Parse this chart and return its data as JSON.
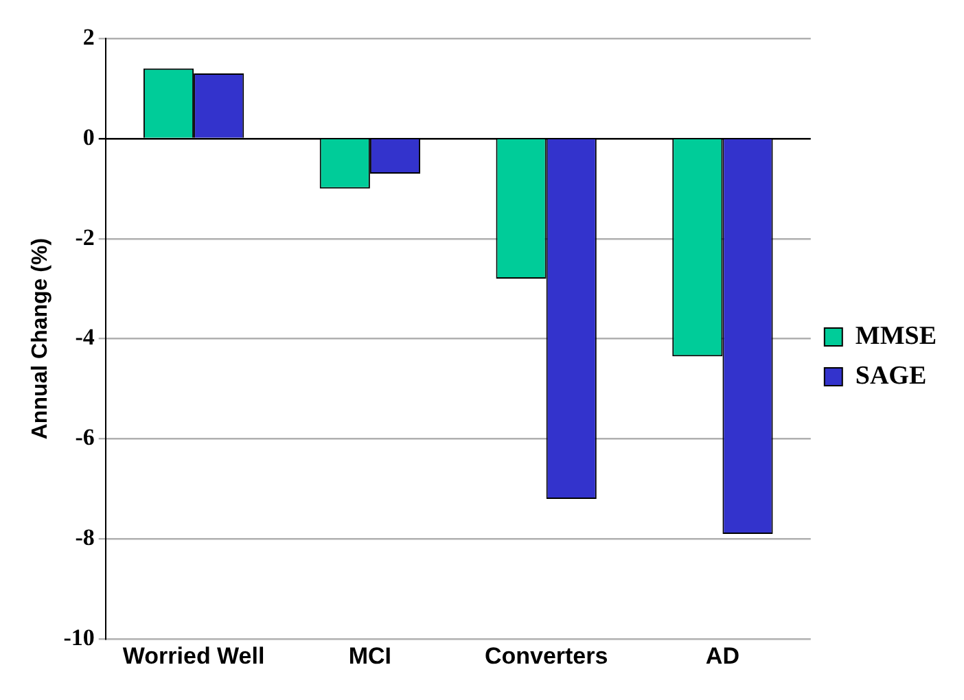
{
  "chart_data": {
    "type": "bar",
    "ylabel": "Annual Change (%)",
    "categories": [
      "Worried Well",
      "MCI",
      "Converters",
      "AD"
    ],
    "series": [
      {
        "name": "MMSE",
        "color": "#00cc99",
        "values": [
          1.4,
          -1.0,
          -2.8,
          -4.35
        ]
      },
      {
        "name": "SAGE",
        "color": "#3333cc",
        "values": [
          1.3,
          -0.7,
          -7.2,
          -7.9
        ]
      }
    ],
    "ylim": [
      -10,
      2
    ],
    "yticks": [
      -10,
      -8,
      -6,
      -4,
      -2,
      0,
      2
    ],
    "grid": "y",
    "legend": "right"
  }
}
